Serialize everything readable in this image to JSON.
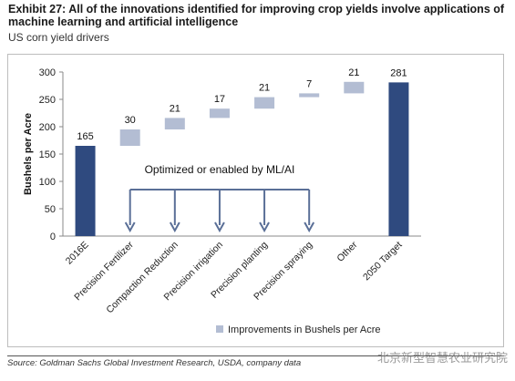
{
  "header": {
    "title": "Exhibit 27: All of the innovations identified for improving crop yields involve applications of machine learning and artificial intelligence",
    "subtitle": "US corn yield drivers"
  },
  "chart_data": {
    "type": "bar",
    "subtype": "waterfall",
    "ylabel": "Bushels per Acre",
    "ylim": [
      0,
      300
    ],
    "yticks": [
      0,
      50,
      100,
      150,
      200,
      250,
      300
    ],
    "grid": false,
    "categories": [
      "2016E",
      "Precision Fertilizer",
      "Compaction Reduction",
      "Precision irrigation",
      "Precision planting",
      "Precision spraying",
      "Other",
      "2050 Target"
    ],
    "bars": [
      {
        "category": "2016E",
        "kind": "total",
        "start": 0,
        "end": 165,
        "label": "165"
      },
      {
        "category": "Precision Fertilizer",
        "kind": "increment",
        "start": 165,
        "end": 195,
        "label": "30"
      },
      {
        "category": "Compaction Reduction",
        "kind": "increment",
        "start": 195,
        "end": 216,
        "label": "21"
      },
      {
        "category": "Precision irrigation",
        "kind": "increment",
        "start": 216,
        "end": 233,
        "label": "17"
      },
      {
        "category": "Precision planting",
        "kind": "increment",
        "start": 233,
        "end": 254,
        "label": "21"
      },
      {
        "category": "Precision spraying",
        "kind": "increment",
        "start": 254,
        "end": 261,
        "label": "7"
      },
      {
        "category": "Other",
        "kind": "increment",
        "start": 261,
        "end": 282,
        "label": "21"
      },
      {
        "category": "2050 Target",
        "kind": "total",
        "start": 0,
        "end": 281,
        "label": "281"
      }
    ],
    "annotation": {
      "text": "Optimized or enabled by ML/AI",
      "arrow_categories": [
        "Precision Fertilizer",
        "Compaction Reduction",
        "Precision irrigation",
        "Precision planting",
        "Precision spraying"
      ],
      "arrow_level_top": 85,
      "arrow_level_bottom": 10
    },
    "legend": {
      "entries": [
        {
          "name": "Improvements in Bushels per Acre",
          "color": "#b3bdd3"
        }
      ],
      "position": "bottom"
    },
    "colors": {
      "total": "#2f4a7f",
      "increment": "#b3bdd3",
      "axis": "#888888",
      "arrow": "#5a6f97"
    }
  },
  "footer": {
    "source": "Source: Goldman Sachs Global Investment Research, USDA, company data",
    "watermark": "北京新型智慧农业研究院"
  }
}
